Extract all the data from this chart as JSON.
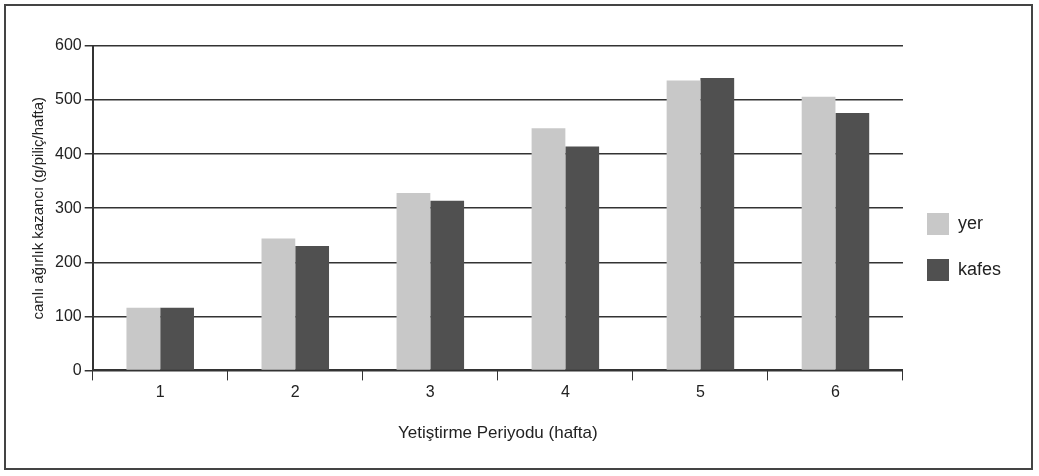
{
  "chart_data": {
    "type": "bar",
    "xlabel": "Yetiştirme Periyodu (hafta)",
    "ylabel": "canlı ağırlık kazancı (g/piliç/hafta)",
    "categories": [
      "1",
      "2",
      "3",
      "4",
      "5",
      "6"
    ],
    "series": [
      {
        "name": "yer",
        "color": "#c8c8c8",
        "values": [
          116,
          244,
          328,
          448,
          536,
          506
        ]
      },
      {
        "name": "kafes",
        "color": "#505050",
        "values": [
          116,
          230,
          314,
          414,
          541,
          476
        ]
      }
    ],
    "ylim": [
      0,
      600
    ],
    "yticks": [
      0,
      100,
      200,
      300,
      400,
      500,
      600
    ],
    "grid": "y",
    "legend": "right"
  }
}
